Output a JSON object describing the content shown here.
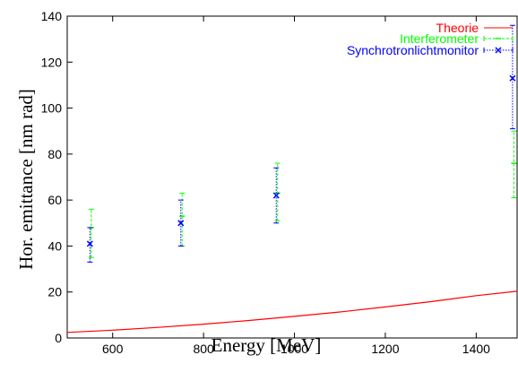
{
  "chart_data": {
    "type": "scatter",
    "xlabel": "Energy [MeV]",
    "ylabel": "Hor. emittance [nm rad]",
    "xlim": [
      500,
      1490
    ],
    "ylim": [
      0,
      140
    ],
    "xticks": [
      600,
      800,
      1000,
      1200,
      1400
    ],
    "yticks": [
      0,
      20,
      40,
      60,
      80,
      100,
      120,
      140
    ],
    "xtick_labels": [
      "600",
      "800",
      "1000",
      "1200",
      "1400"
    ],
    "ytick_labels": [
      "0",
      "20",
      "40",
      "60",
      "80",
      "100",
      "120",
      "140"
    ],
    "grid": false,
    "legend_position": "top-right",
    "series": [
      {
        "name": "Theorie",
        "kind": "line",
        "color": "#ff0000",
        "x": [
          500,
          600,
          700,
          800,
          900,
          1000,
          1100,
          1200,
          1300,
          1400,
          1490
        ],
        "y": [
          2.4,
          3.4,
          4.6,
          6.0,
          7.6,
          9.4,
          11.3,
          13.5,
          15.8,
          18.4,
          20.3
        ]
      },
      {
        "name": "Interferometer",
        "kind": "errorbar",
        "color": "#00ff00",
        "x": [
          550,
          750,
          960,
          1480
        ],
        "y": [
          48,
          53,
          63,
          76
        ],
        "ylow": [
          35,
          40,
          51,
          61
        ],
        "yhigh": [
          56,
          63,
          76,
          90
        ]
      },
      {
        "name": "Synchrotronlichtmonitor",
        "kind": "errorbar",
        "color": "#0000ff",
        "x": [
          550,
          750,
          960,
          1480
        ],
        "y": [
          41,
          50,
          62,
          113
        ],
        "ylow": [
          33,
          40,
          50,
          91
        ],
        "yhigh": [
          48,
          60,
          74,
          136
        ]
      }
    ]
  }
}
